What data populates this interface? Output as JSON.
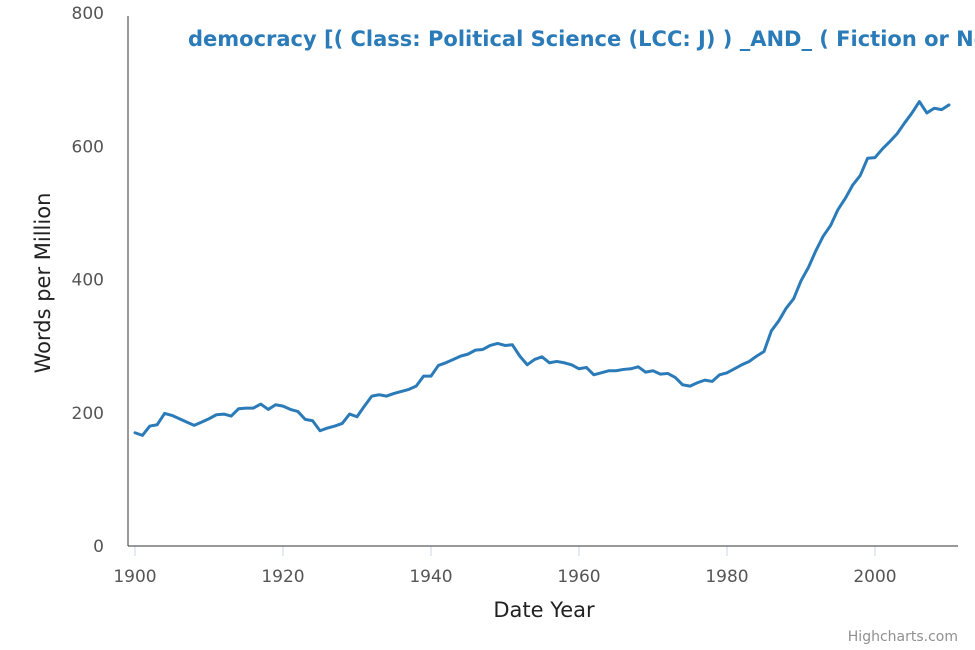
{
  "chart_data": {
    "type": "line",
    "title": "democracy [( Class: Political Science (LCC: J) ) _AND_ ( Fiction or Not Fic",
    "xlabel": "Date Year",
    "ylabel": "Words per Million",
    "xlim": [
      1900,
      2011
    ],
    "ylim": [
      0,
      800
    ],
    "x_ticks": [
      1900,
      1920,
      1940,
      1960,
      1980,
      2000
    ],
    "y_ticks": [
      0,
      200,
      400,
      600,
      800
    ],
    "grid": false,
    "credits": "Highcharts.com",
    "series": [
      {
        "color": "#2b7bb9",
        "x": [
          1900,
          1901,
          1902,
          1903,
          1904,
          1905,
          1906,
          1907,
          1908,
          1909,
          1910,
          1911,
          1912,
          1913,
          1914,
          1915,
          1916,
          1917,
          1918,
          1919,
          1920,
          1921,
          1922,
          1923,
          1924,
          1925,
          1926,
          1927,
          1928,
          1929,
          1930,
          1931,
          1932,
          1933,
          1934,
          1935,
          1936,
          1937,
          1938,
          1939,
          1940,
          1941,
          1942,
          1943,
          1944,
          1945,
          1946,
          1947,
          1948,
          1949,
          1950,
          1951,
          1952,
          1953,
          1954,
          1955,
          1956,
          1957,
          1958,
          1959,
          1960,
          1961,
          1962,
          1963,
          1964,
          1965,
          1966,
          1967,
          1968,
          1969,
          1970,
          1971,
          1972,
          1973,
          1974,
          1975,
          1976,
          1977,
          1978,
          1979,
          1980,
          1981,
          1982,
          1983,
          1984,
          1985,
          1986,
          1987,
          1988,
          1989,
          1990,
          1991,
          1992,
          1993,
          1994,
          1995,
          1996,
          1997,
          1998,
          1999,
          2000,
          2001,
          2002,
          2003,
          2004,
          2005,
          2006,
          2007,
          2008,
          2009,
          2010
        ],
        "values": [
          170,
          166,
          180,
          182,
          199,
          196,
          191,
          186,
          181,
          186,
          191,
          197,
          198,
          195,
          206,
          207,
          207,
          213,
          205,
          212,
          210,
          205,
          202,
          190,
          188,
          173,
          177,
          180,
          184,
          198,
          194,
          210,
          225,
          227,
          225,
          229,
          232,
          235,
          240,
          255,
          255,
          271,
          275,
          280,
          285,
          288,
          294,
          295,
          301,
          304,
          301,
          302,
          285,
          272,
          280,
          284,
          275,
          277,
          275,
          272,
          266,
          268,
          257,
          260,
          263,
          263,
          265,
          266,
          269,
          261,
          263,
          258,
          259,
          253,
          242,
          240,
          245,
          249,
          247,
          257,
          260,
          266,
          272,
          277,
          285,
          292,
          323,
          338,
          357,
          371,
          398,
          418,
          443,
          465,
          481,
          505,
          522,
          542,
          556,
          582,
          583,
          596,
          607,
          619,
          635,
          650,
          667,
          650,
          657,
          655,
          662
        ]
      }
    ]
  }
}
